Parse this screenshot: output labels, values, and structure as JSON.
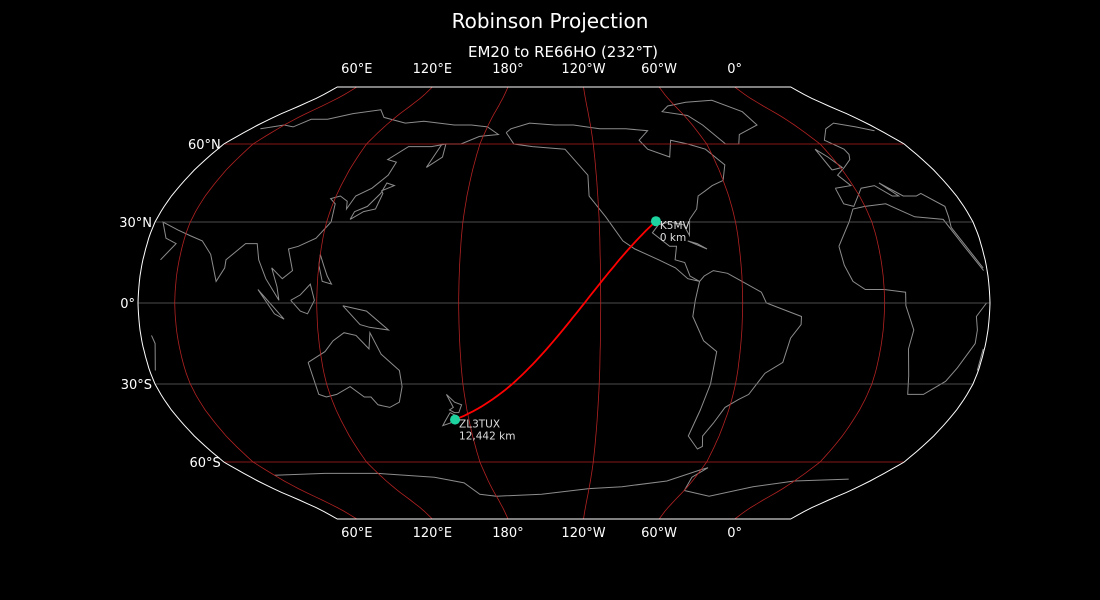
{
  "title": "Robinson Projection",
  "subtitle": "EM20 to RE66HO (232°T)",
  "map": {
    "projection": "Robinson",
    "central_longitude": -135.5,
    "lon_labels": [
      {
        "lon": 60,
        "label": "60°E"
      },
      {
        "lon": 120,
        "label": "120°E"
      },
      {
        "lon": 180,
        "label": "180°"
      },
      {
        "lon": -120,
        "label": "120°W"
      },
      {
        "lon": -60,
        "label": "60°W"
      },
      {
        "lon": 0,
        "label": "0°"
      }
    ],
    "lat_labels": [
      {
        "lat": 60,
        "label": "60°N"
      },
      {
        "lat": 30,
        "label": "30°N"
      },
      {
        "lat": 0,
        "label": "0°"
      },
      {
        "lat": -30,
        "label": "30°S"
      },
      {
        "lat": -60,
        "label": "60°S"
      }
    ],
    "colors": {
      "background": "#000000",
      "coastline": "#8c8c8c",
      "grid_major": "#b22222",
      "grid_minor": "#666666",
      "boundary": "#ffffff",
      "path": "#ff0000",
      "marker": "#1dd3a0"
    }
  },
  "stations": [
    {
      "name": "K5MV",
      "distance": "0 km",
      "lat": 30.3,
      "lon": -95
    },
    {
      "name": "ZL3TUX",
      "distance": "12,442 km",
      "lat": -43.7,
      "lon": 173.5
    }
  ]
}
